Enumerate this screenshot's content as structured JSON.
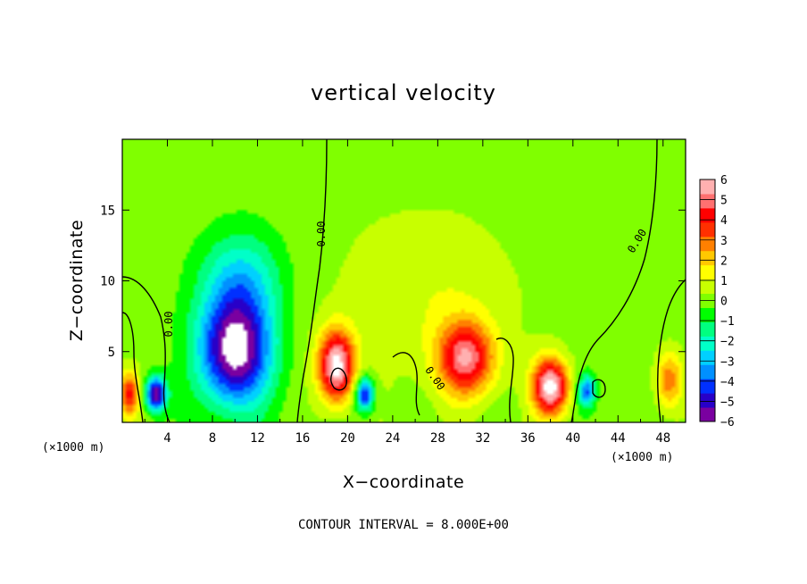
{
  "chart_data": {
    "type": "heatmap",
    "title": "vertical velocity",
    "xlabel": "X−coordinate",
    "ylabel": "Z−coordinate",
    "x_unit_left": "(×1000 m)",
    "x_unit_right": "(×1000 m)",
    "xlim": [
      0,
      50
    ],
    "ylim": [
      0,
      20
    ],
    "x_ticks": [
      4,
      8,
      12,
      16,
      20,
      24,
      28,
      32,
      36,
      40,
      44,
      48
    ],
    "x_tick_labels": [
      "4",
      "8",
      "12",
      "16",
      "20",
      "24",
      "28",
      "32",
      "36",
      "40",
      "44",
      "48"
    ],
    "y_ticks": [
      5,
      10,
      15
    ],
    "y_tick_labels": [
      "5",
      "10",
      "15"
    ],
    "colorbar": {
      "min": -6,
      "max": 6,
      "ticks": [
        6,
        5,
        4,
        3,
        2,
        1,
        0,
        -1,
        -2,
        -3,
        -4,
        -5,
        -6
      ],
      "tick_labels": [
        "6",
        "5",
        "4",
        "3",
        "2",
        "1",
        "0",
        "−1",
        "−2",
        "−3",
        "−4",
        "−5",
        "−6"
      ],
      "colors": [
        "#7a00a0",
        "#2800c8",
        "#0030ff",
        "#0090ff",
        "#00d0ff",
        "#00ffc8",
        "#00ff80",
        "#00ff00",
        "#80ff00",
        "#c8ff00",
        "#ffff00",
        "#ffc800",
        "#ff8000",
        "#ff3000",
        "#ff0000",
        "#ff7070",
        "#ffb0b0"
      ]
    },
    "field_features": [
      {
        "name": "downdraft-core",
        "x": 10,
        "z": 5,
        "wx": 3.2,
        "wz": 3.8,
        "value": -6.5
      },
      {
        "name": "downdraft-upper",
        "x": 10.5,
        "z": 10,
        "wx": 3.5,
        "wz": 3.5,
        "value": -2.5
      },
      {
        "name": "updraft-19",
        "x": 19,
        "z": 4,
        "wx": 1.6,
        "wz": 2.5,
        "value": 6.5
      },
      {
        "name": "updraft-30",
        "x": 30.5,
        "z": 4.5,
        "wx": 2.5,
        "wz": 2.6,
        "value": 5
      },
      {
        "name": "updraft-38",
        "x": 38,
        "z": 2.5,
        "wx": 1.6,
        "wz": 2.0,
        "value": 6.5
      },
      {
        "name": "updraft-edge-left",
        "x": 0.6,
        "z": 2,
        "wx": 0.9,
        "wz": 1.6,
        "value": 4
      },
      {
        "name": "downdraft-3",
        "x": 3,
        "z": 2,
        "wx": 0.9,
        "wz": 1.2,
        "value": -6
      },
      {
        "name": "downdraft-21",
        "x": 21.5,
        "z": 2,
        "wx": 0.8,
        "wz": 1.2,
        "value": -5
      },
      {
        "name": "downdraft-41",
        "x": 41.2,
        "z": 2.2,
        "wx": 0.8,
        "wz": 1.1,
        "value": -4
      },
      {
        "name": "weak-up-center",
        "x": 27,
        "z": 9,
        "wx": 8,
        "wz": 6,
        "value": 1
      },
      {
        "name": "weak-up-right",
        "x": 48.5,
        "z": 3,
        "wx": 1.2,
        "wz": 2.0,
        "value": 3
      }
    ],
    "contour_labels": [
      "0.00",
      "0.00",
      "0.00",
      "0.00"
    ]
  },
  "footer": "CONTOUR INTERVAL = 8.000E+00"
}
